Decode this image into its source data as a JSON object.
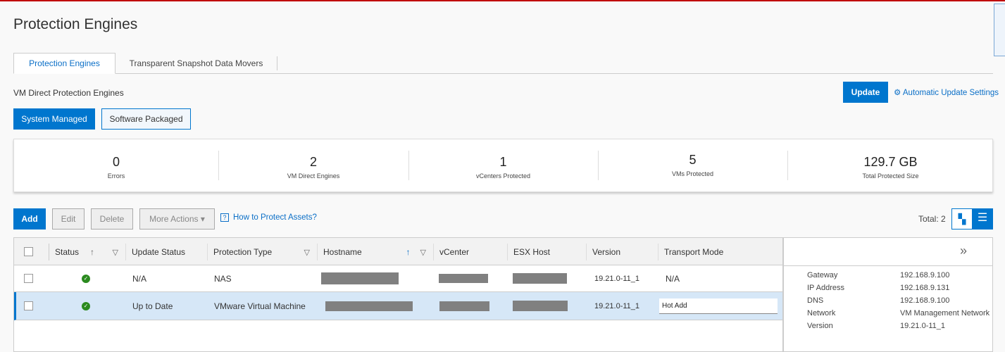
{
  "page": {
    "title": "Protection Engines"
  },
  "tabs": [
    {
      "label": "Protection Engines",
      "active": true
    },
    {
      "label": "Transparent Snapshot Data Movers",
      "active": false
    }
  ],
  "section": {
    "title": "VM Direct Protection Engines",
    "update_label": "Update",
    "auto_update_label": "Automatic Update Settings"
  },
  "mode": {
    "system_managed": "System Managed",
    "software_packaged": "Software Packaged",
    "selected": "System Managed"
  },
  "stats": [
    {
      "value": "0",
      "label": "Errors"
    },
    {
      "value": "2",
      "label": "VM Direct Engines"
    },
    {
      "value": "1",
      "label": "vCenters Protected"
    },
    {
      "value": "5",
      "label": "VMs Protected"
    },
    {
      "value": "129.7 GB",
      "label": "Total Protected Size"
    }
  ],
  "toolbar": {
    "add": "Add",
    "edit": "Edit",
    "delete": "Delete",
    "more_actions": "More Actions",
    "help_link": "How to Protect Assets?",
    "help_icon": "?",
    "total": "Total: 2"
  },
  "table": {
    "columns": [
      "Status",
      "Update Status",
      "Protection Type",
      "Hostname",
      "vCenter",
      "ESX Host",
      "Version",
      "Transport Mode"
    ],
    "rows": [
      {
        "status": "ok",
        "update_status": "N/A",
        "protection_type": "NAS",
        "version": "19.21.0-11_1",
        "transport_mode": "N/A",
        "selected": false
      },
      {
        "status": "ok",
        "update_status": "Up to Date",
        "protection_type": "VMware Virtual Machine",
        "version": "19.21.0-11_1",
        "transport_mode": "Hot Add",
        "selected": true
      }
    ]
  },
  "details": [
    {
      "key": "Gateway",
      "value": "192.168.9.100"
    },
    {
      "key": "IP Address",
      "value": "192.168.9.131"
    },
    {
      "key": "DNS",
      "value": "192.168.9.100"
    },
    {
      "key": "Network",
      "value": "VM Management Network"
    },
    {
      "key": "Version",
      "value": "19.21.0-11_1"
    }
  ],
  "colors": {
    "accent": "#0076ce",
    "status_ok": "#2b8a1f",
    "selected_row": "#d6e7f7"
  }
}
